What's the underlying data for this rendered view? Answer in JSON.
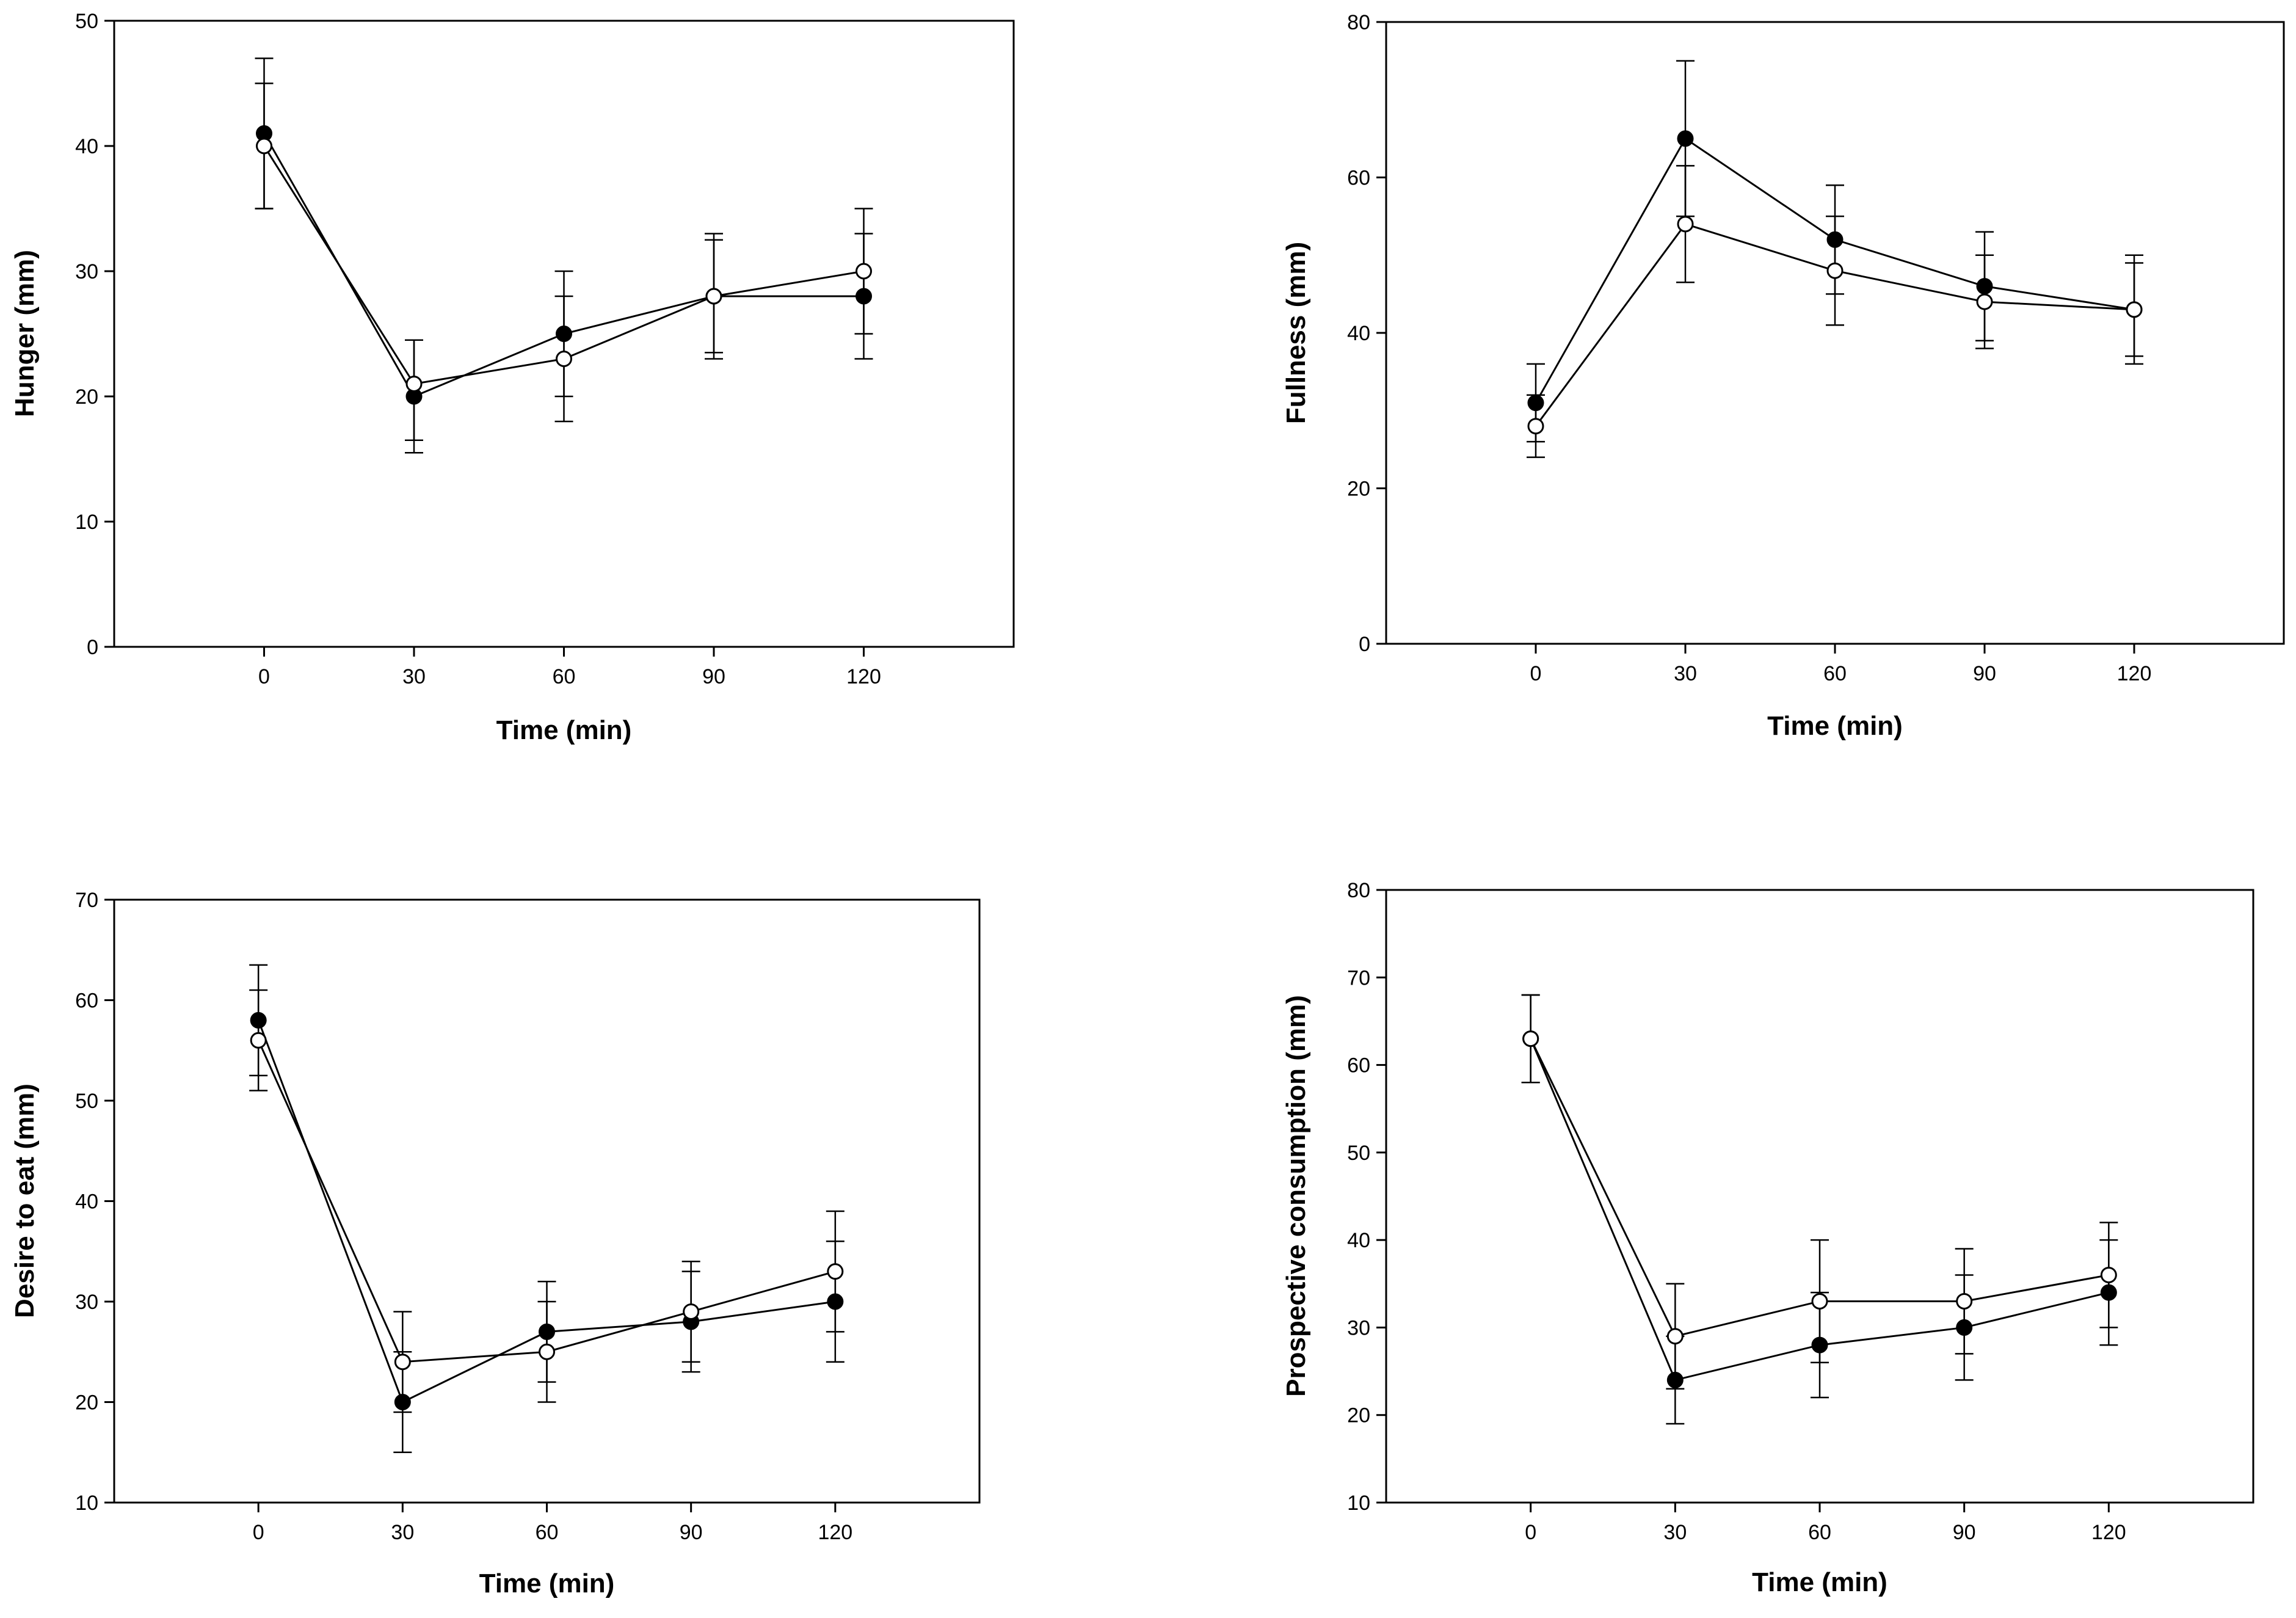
{
  "chart_data": [
    {
      "type": "line",
      "title": "",
      "xlabel": "Time (min)",
      "ylabel": "Hunger (mm)",
      "x": [
        0,
        30,
        60,
        90,
        120
      ],
      "xlim": [
        -30,
        150
      ],
      "ylim": [
        0,
        50
      ],
      "xticks": [
        0,
        30,
        60,
        90,
        120
      ],
      "yticks": [
        0,
        10,
        20,
        30,
        40,
        50
      ],
      "grid": false,
      "series": [
        {
          "name": "filled",
          "marker": "filled-circle",
          "values": [
            41,
            20,
            25,
            28,
            28
          ],
          "errors_upper": [
            6,
            4.5,
            5,
            5,
            5
          ],
          "errors_lower": [
            6,
            4.5,
            5,
            5,
            5
          ]
        },
        {
          "name": "open",
          "marker": "open-circle",
          "values": [
            40,
            21,
            23,
            28,
            30
          ],
          "errors_upper": [
            5,
            3.5,
            5,
            4.5,
            5
          ],
          "errors_lower": [
            5,
            4.5,
            5,
            4.5,
            5
          ]
        }
      ]
    },
    {
      "type": "line",
      "title": "",
      "xlabel": "Time (min)",
      "ylabel": "Fullness (mm)",
      "x": [
        0,
        30,
        60,
        90,
        120
      ],
      "xlim": [
        -30,
        150
      ],
      "ylim": [
        0,
        80
      ],
      "xticks": [
        0,
        30,
        60,
        90,
        120
      ],
      "yticks": [
        0,
        20,
        40,
        60,
        80
      ],
      "grid": false,
      "series": [
        {
          "name": "filled",
          "marker": "filled-circle",
          "values": [
            31,
            65,
            52,
            46,
            43
          ],
          "errors_upper": [
            5,
            10,
            7,
            7,
            7
          ],
          "errors_lower": [
            5,
            10,
            7,
            7,
            7
          ]
        },
        {
          "name": "open",
          "marker": "open-circle",
          "values": [
            28,
            54,
            48,
            44,
            43
          ],
          "errors_upper": [
            4,
            7.5,
            7,
            6,
            6
          ],
          "errors_lower": [
            4,
            7.5,
            7,
            6,
            6
          ]
        }
      ]
    },
    {
      "type": "line",
      "title": "",
      "xlabel": "Time (min)",
      "ylabel": "Desire to eat (mm)",
      "x": [
        0,
        30,
        60,
        90,
        120
      ],
      "xlim": [
        -30,
        150
      ],
      "ylim": [
        10,
        70
      ],
      "xticks": [
        0,
        30,
        60,
        90,
        120
      ],
      "yticks": [
        10,
        20,
        30,
        40,
        50,
        60,
        70
      ],
      "grid": false,
      "series": [
        {
          "name": "filled",
          "marker": "filled-circle",
          "values": [
            58,
            20,
            27,
            28,
            30
          ],
          "errors_upper": [
            5.5,
            5,
            5,
            5,
            6
          ],
          "errors_lower": [
            5.5,
            5,
            5,
            5,
            6
          ]
        },
        {
          "name": "open",
          "marker": "open-circle",
          "values": [
            56,
            24,
            25,
            29,
            33
          ],
          "errors_upper": [
            5,
            5,
            5,
            5,
            6
          ],
          "errors_lower": [
            5,
            5,
            5,
            5,
            6
          ]
        }
      ]
    },
    {
      "type": "line",
      "title": "",
      "xlabel": "Time (min)",
      "ylabel": "Prospective consumption (mm)",
      "x": [
        0,
        30,
        60,
        90,
        120
      ],
      "xlim": [
        -30,
        150
      ],
      "ylim": [
        10,
        80
      ],
      "xticks": [
        0,
        30,
        60,
        90,
        120
      ],
      "yticks": [
        10,
        20,
        30,
        40,
        50,
        60,
        70,
        80
      ],
      "grid": false,
      "series": [
        {
          "name": "filled",
          "marker": "filled-circle",
          "values": [
            63,
            24,
            28,
            30,
            34
          ],
          "errors_upper": [
            5,
            5,
            6,
            6,
            6
          ],
          "errors_lower": [
            5,
            5,
            6,
            6,
            6
          ]
        },
        {
          "name": "open",
          "marker": "open-circle",
          "values": [
            63,
            29,
            33,
            33,
            36
          ],
          "errors_upper": [
            5,
            6,
            7,
            6,
            6
          ],
          "errors_lower": [
            5,
            6,
            7,
            6,
            6
          ]
        }
      ]
    }
  ]
}
